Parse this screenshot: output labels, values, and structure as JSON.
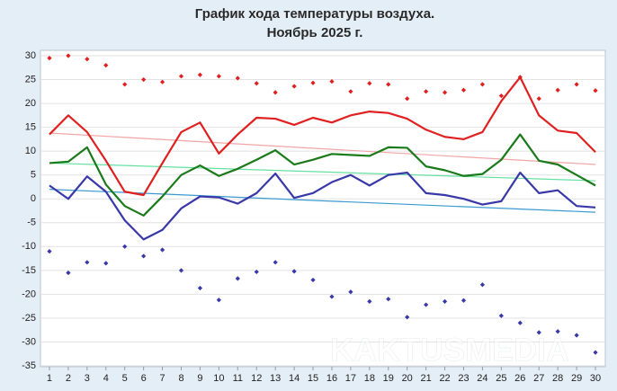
{
  "chart_data": {
    "type": "line",
    "title": [
      "График хода температуры воздуха.",
      "Ноябрь 2025 г."
    ],
    "watermark": "KAKTUSMEDIA",
    "x": [
      1,
      2,
      3,
      4,
      5,
      6,
      7,
      8,
      9,
      10,
      11,
      12,
      13,
      14,
      15,
      16,
      17,
      18,
      19,
      20,
      21,
      22,
      23,
      24,
      25,
      26,
      27,
      28,
      29,
      30
    ],
    "xlim": [
      0.5,
      30.5
    ],
    "xticks": [
      1,
      2,
      3,
      4,
      5,
      6,
      7,
      8,
      9,
      10,
      11,
      12,
      13,
      14,
      15,
      16,
      17,
      18,
      19,
      20,
      21,
      22,
      23,
      24,
      25,
      26,
      27,
      28,
      29,
      30
    ],
    "ylim": [
      -35,
      30
    ],
    "yticks": [
      -35,
      -30,
      -25,
      -20,
      -15,
      -10,
      -5,
      0,
      5,
      10,
      15,
      20,
      25,
      30
    ],
    "grid": true,
    "series": [
      {
        "style": "trend",
        "color": "#f2a5a5",
        "x": [
          1,
          30
        ],
        "values": [
          13.8,
          7.2
        ]
      },
      {
        "style": "trend",
        "color": "#66e0a0",
        "x": [
          1,
          30
        ],
        "values": [
          7.5,
          3.8
        ]
      },
      {
        "style": "trend",
        "color": "#3a9ad0",
        "x": [
          1,
          30
        ],
        "values": [
          2,
          -2.8
        ]
      },
      {
        "style": "markers",
        "color": "#e02020",
        "values": [
          29.5,
          30,
          29.3,
          28,
          24,
          25,
          24.5,
          25.7,
          26,
          25.7,
          25.3,
          24.2,
          22.3,
          23.6,
          24.3,
          24.6,
          22.5,
          24.2,
          24,
          21,
          22.5,
          22.3,
          22.8,
          24,
          21.6,
          25.5,
          21,
          22.8,
          24,
          22.7
        ]
      },
      {
        "style": "markers",
        "color": "#3838a8",
        "values": [
          -11,
          -15.5,
          -13.3,
          -13.5,
          -10,
          -12,
          -10.7,
          -15,
          -18.7,
          -21.2,
          -16.7,
          -15.3,
          -13.3,
          -15.2,
          -17,
          -20.5,
          -19.5,
          -21.5,
          -21,
          -24.8,
          -22.2,
          -21.5,
          -21.3,
          -18,
          -24.5,
          -26,
          -28,
          -27.8,
          -28.6,
          -32.2
        ]
      },
      {
        "style": "line",
        "color": "#e02020",
        "values": [
          13.5,
          17.5,
          14,
          8,
          1.5,
          0.8,
          7.5,
          14,
          16,
          9.5,
          13.5,
          17,
          16.8,
          15.5,
          17,
          16,
          17.5,
          18.3,
          18,
          16.8,
          14.5,
          13,
          12.5,
          14,
          20.5,
          25.5,
          17.5,
          14.3,
          13.8,
          9.8
        ]
      },
      {
        "style": "line",
        "color": "#1a7a1a",
        "values": [
          7.5,
          7.8,
          10.8,
          3,
          -1.5,
          -3.5,
          0.5,
          5,
          7,
          4.8,
          6.3,
          8.2,
          10.2,
          7.2,
          8.2,
          9.4,
          9.2,
          9,
          10.8,
          10.7,
          6.8,
          6,
          4.8,
          5.2,
          8.2,
          13.5,
          8,
          7.2,
          5,
          2.8
        ]
      },
      {
        "style": "line",
        "color": "#3838a8",
        "values": [
          2.8,
          0,
          4.7,
          1.5,
          -4.5,
          -8.5,
          -6.5,
          -2,
          0.5,
          0.3,
          -1,
          1.2,
          5.3,
          0.2,
          1.2,
          3.5,
          5,
          2.8,
          5,
          5.5,
          1.2,
          0.8,
          0,
          -1.2,
          -0.5,
          5.5,
          1.2,
          1.8,
          -1.5,
          -1.8
        ]
      }
    ]
  }
}
